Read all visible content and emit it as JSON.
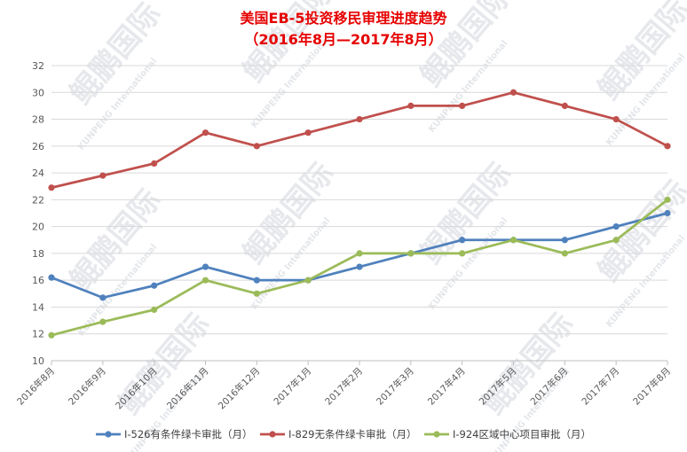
{
  "chart_data": {
    "type": "line",
    "title": "美国EB-5投资移民审理进度趋势",
    "subtitle": "（2016年8月—2017年8月）",
    "categories": [
      "2016年8月",
      "2016年9月",
      "2016年10月",
      "2016年11月",
      "2016年12月",
      "2017年1月",
      "2017年2月",
      "2017年3月",
      "2017年4月",
      "2017年5月",
      "2017年6月",
      "2017年7月",
      "2017年8月"
    ],
    "ylim": [
      10,
      32
    ],
    "yticks": [
      10,
      12,
      14,
      16,
      18,
      20,
      22,
      24,
      26,
      28,
      30,
      32
    ],
    "grid": true,
    "legend_position": "bottom",
    "series": [
      {
        "name": "I-526有条件绿卡审批（月）",
        "color": "#4f81bd",
        "values": [
          16.2,
          14.7,
          15.6,
          17,
          16,
          16,
          17,
          18,
          19,
          19,
          19,
          20,
          21
        ]
      },
      {
        "name": "I-829无条件绿卡审批（月）",
        "color": "#c0504d",
        "values": [
          22.9,
          23.8,
          24.7,
          27,
          26,
          27,
          28,
          29,
          29,
          30,
          29,
          28,
          26
        ]
      },
      {
        "name": "I-924区域中心项目审批（月）",
        "color": "#9bbb59",
        "values": [
          11.9,
          12.9,
          13.8,
          16,
          15,
          16,
          18,
          18,
          18,
          19,
          18,
          19,
          22
        ]
      }
    ]
  },
  "watermark": {
    "text": "鲲鹏国际",
    "sub": "KUNPENG International"
  }
}
